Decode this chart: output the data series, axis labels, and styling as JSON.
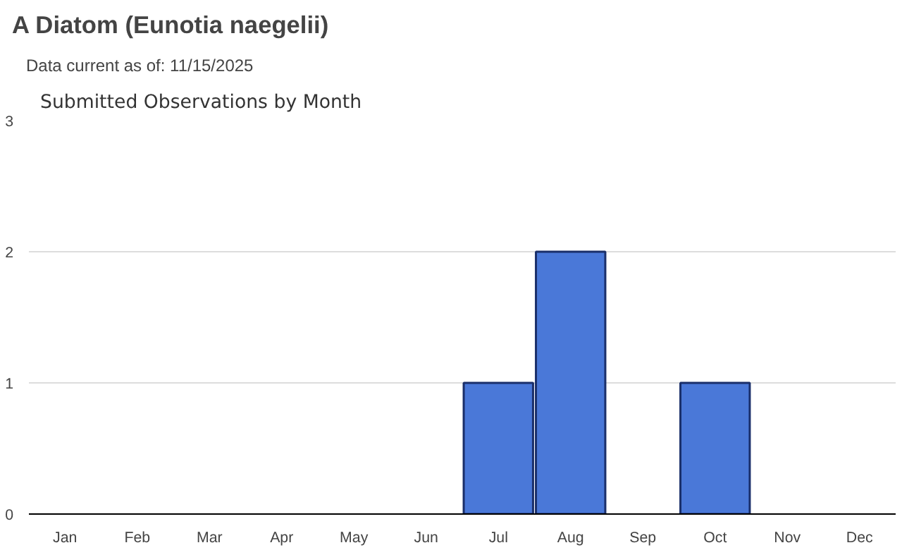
{
  "chart_data": {
    "type": "bar",
    "title": "A Diatom   (Eunotia naegelii)",
    "subtitle": "Data current as of: 11/15/2025",
    "annotations": [
      "Submitted Observations by Month"
    ],
    "categories": [
      "Jan",
      "Feb",
      "Mar",
      "Apr",
      "May",
      "Jun",
      "Jul",
      "Aug",
      "Sep",
      "Oct",
      "Nov",
      "Dec"
    ],
    "values": [
      0,
      0,
      0,
      0,
      0,
      0,
      1,
      2,
      0,
      1,
      0,
      0
    ],
    "color": "#4a78d8",
    "ylim": [
      0,
      3
    ],
    "yticks": [
      0,
      1,
      2,
      3
    ],
    "grid": "y"
  }
}
